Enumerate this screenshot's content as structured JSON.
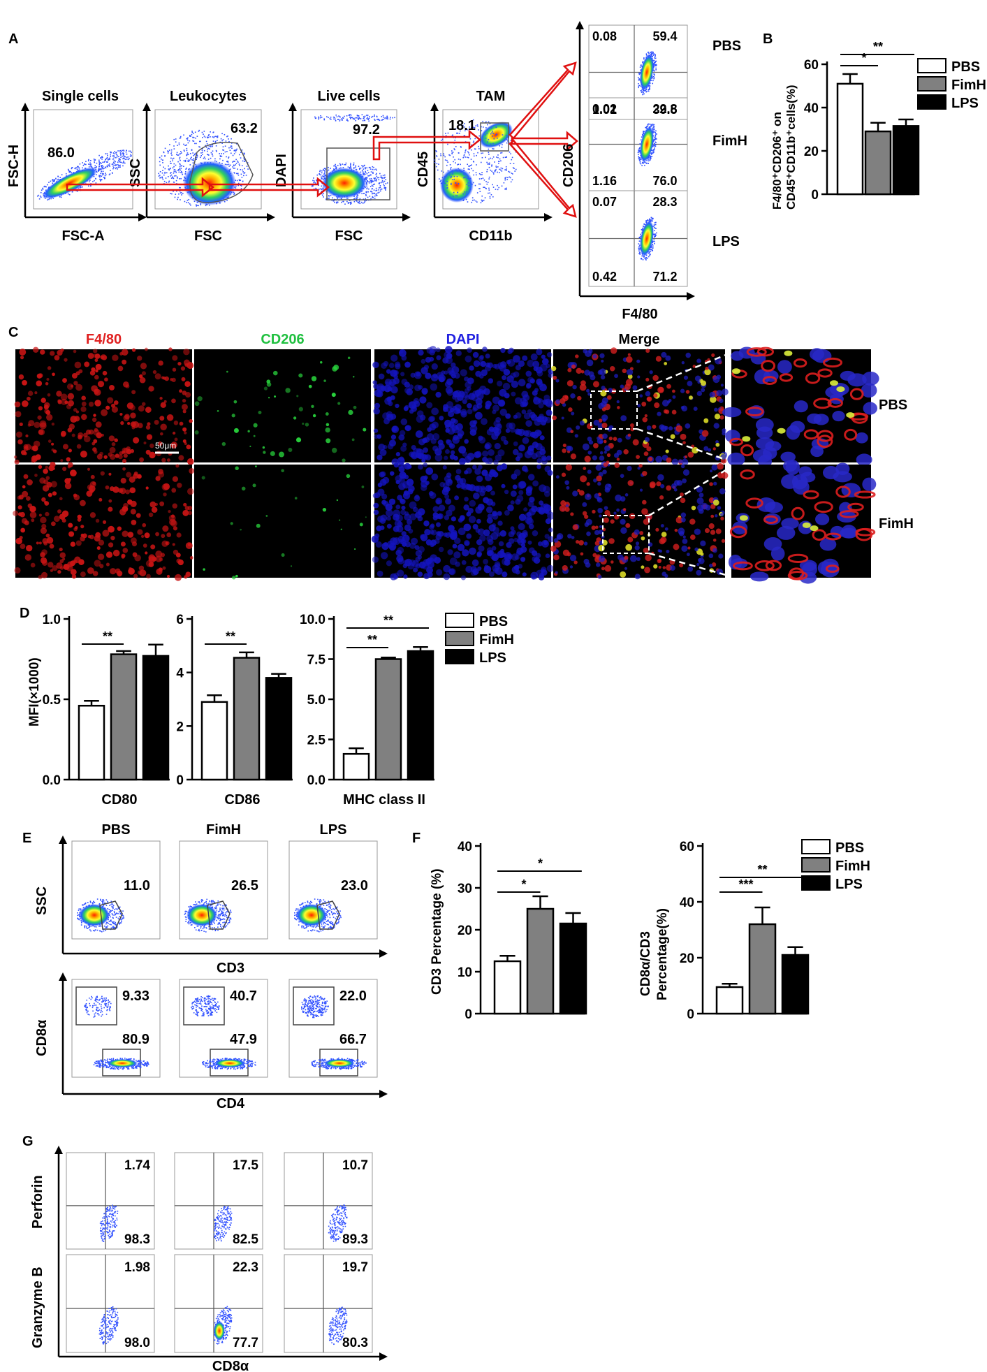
{
  "panels": {
    "A": "A",
    "B": "B",
    "C": "C",
    "D": "D",
    "E": "E",
    "F": "F",
    "G": "G"
  },
  "groups": [
    "PBS",
    "FimH",
    "LPS"
  ],
  "colors": {
    "PBS": "#ffffff",
    "FimH": "#808080",
    "LPS": "#000000",
    "gate_arrow": "#e01010"
  },
  "panelA": {
    "plots": [
      {
        "title": "Single cells",
        "xlabel": "FSC-A",
        "ylabel": "FSC-H",
        "value": "86.0"
      },
      {
        "title": "Leukocytes",
        "xlabel": "FSC",
        "ylabel": "SSC",
        "value": "63.2"
      },
      {
        "title": "Live cells",
        "xlabel": "FSC",
        "ylabel": "DAPI",
        "value": "97.2"
      },
      {
        "title": "TAM",
        "xlabel": "CD11b",
        "ylabel": "CD45",
        "value": "18.1"
      }
    ],
    "quadrants": [
      {
        "group": "PBS",
        "ul": "0.08",
        "ur": "59.4",
        "ll": "1.01",
        "lr": "39.5"
      },
      {
        "group": "FimH",
        "ul": "0.02",
        "ur": "22.8",
        "ll": "1.16",
        "lr": "76.0"
      },
      {
        "group": "LPS",
        "ul": "0.07",
        "ur": "28.3",
        "ll": "0.42",
        "lr": "71.2"
      }
    ],
    "quad_xlabel": "F4/80",
    "quad_ylabel": "CD206"
  },
  "chart_data": [
    {
      "panel": "B",
      "type": "bar",
      "categories": [
        "PBS",
        "FimH",
        "LPS"
      ],
      "values": [
        51,
        29,
        31.5
      ],
      "errors": [
        4.5,
        4,
        3
      ],
      "ylabel": "F4/80⁺CD206⁺ on CD45⁺CD11b⁺cells(%)",
      "ylim": [
        0,
        60
      ],
      "yticks": [
        "0",
        "20",
        "40",
        "60"
      ],
      "significance": [
        {
          "from": 0,
          "to": 1,
          "label": "*"
        },
        {
          "from": 0,
          "to": 2,
          "label": "**"
        }
      ],
      "legend": "right"
    },
    {
      "panel": "D1",
      "type": "bar",
      "categories": [
        "PBS",
        "FimH",
        "LPS"
      ],
      "values": [
        0.46,
        0.78,
        0.77
      ],
      "errors": [
        0.03,
        0.02,
        0.07
      ],
      "xlabel": "CD80",
      "ylabel": "MFI(×1000)",
      "ylim": [
        0,
        1.0
      ],
      "yticks": [
        "0.0",
        "0.5",
        "1.0"
      ],
      "significance": [
        {
          "from": 0,
          "to": 1,
          "label": "**"
        }
      ]
    },
    {
      "panel": "D2",
      "type": "bar",
      "categories": [
        "PBS",
        "FimH",
        "LPS"
      ],
      "values": [
        2.9,
        4.55,
        3.8
      ],
      "errors": [
        0.25,
        0.2,
        0.15
      ],
      "xlabel": "CD86",
      "ylim": [
        0,
        6
      ],
      "yticks": [
        "0",
        "2",
        "4",
        "6"
      ],
      "significance": [
        {
          "from": 0,
          "to": 1,
          "label": "**"
        }
      ]
    },
    {
      "panel": "D3",
      "type": "bar",
      "categories": [
        "PBS",
        "FimH",
        "LPS"
      ],
      "values": [
        1.6,
        7.5,
        8.0
      ],
      "errors": [
        0.35,
        0.1,
        0.25
      ],
      "xlabel": "MHC class II",
      "ylim": [
        0,
        10
      ],
      "yticks": [
        "0.0",
        "2.5",
        "5.0",
        "7.5",
        "10.0"
      ],
      "significance": [
        {
          "from": 0,
          "to": 1,
          "label": "**"
        },
        {
          "from": 0,
          "to": 2,
          "label": "**"
        }
      ],
      "legend": "right"
    },
    {
      "panel": "F1",
      "type": "bar",
      "categories": [
        "PBS",
        "FimH",
        "LPS"
      ],
      "values": [
        12.5,
        25,
        21.5
      ],
      "errors": [
        1.3,
        3,
        2.5
      ],
      "ylabel": "CD3 Percentage (%)",
      "ylim": [
        0,
        40
      ],
      "yticks": [
        "0",
        "10",
        "20",
        "30",
        "40"
      ],
      "significance": [
        {
          "from": 0,
          "to": 1,
          "label": "*"
        },
        {
          "from": 0,
          "to": 2,
          "label": "*"
        }
      ]
    },
    {
      "panel": "F2",
      "type": "bar",
      "categories": [
        "PBS",
        "FimH",
        "LPS"
      ],
      "values": [
        9.5,
        32,
        21
      ],
      "errors": [
        1.2,
        6,
        2.8
      ],
      "ylabel": "CD8α/CD3 Percentage(%)",
      "ylim": [
        0,
        60
      ],
      "yticks": [
        "0",
        "20",
        "40",
        "60"
      ],
      "significance": [
        {
          "from": 0,
          "to": 1,
          "label": "***"
        },
        {
          "from": 0,
          "to": 2,
          "label": "**"
        }
      ],
      "legend": "right"
    }
  ],
  "panelC": {
    "channels": [
      "F4/80",
      "CD206",
      "DAPI",
      "Merge"
    ],
    "channel_colors": [
      "#e02020",
      "#20c040",
      "#2020e0",
      "#000000"
    ],
    "rows": [
      "PBS",
      "FimH"
    ],
    "scalebar": "50μm"
  },
  "panelE": {
    "top": {
      "ylabel": "SSC",
      "xlabel": "CD3",
      "values": [
        "11.0",
        "26.5",
        "23.0"
      ]
    },
    "bottom": {
      "ylabel": "CD8α",
      "xlabel": "CD4",
      "values": [
        [
          "9.33",
          "80.9"
        ],
        [
          "40.7",
          "47.9"
        ],
        [
          "22.0",
          "66.7"
        ]
      ]
    }
  },
  "panelG": {
    "rows": [
      {
        "ylabel": "Perforin",
        "values": [
          [
            "1.74",
            "98.3"
          ],
          [
            "17.5",
            "82.5"
          ],
          [
            "10.7",
            "89.3"
          ]
        ]
      },
      {
        "ylabel": "Granzyme B",
        "values": [
          [
            "1.98",
            "98.0"
          ],
          [
            "22.3",
            "77.7"
          ],
          [
            "19.7",
            "80.3"
          ]
        ]
      }
    ],
    "xlabel": "CD8α"
  }
}
